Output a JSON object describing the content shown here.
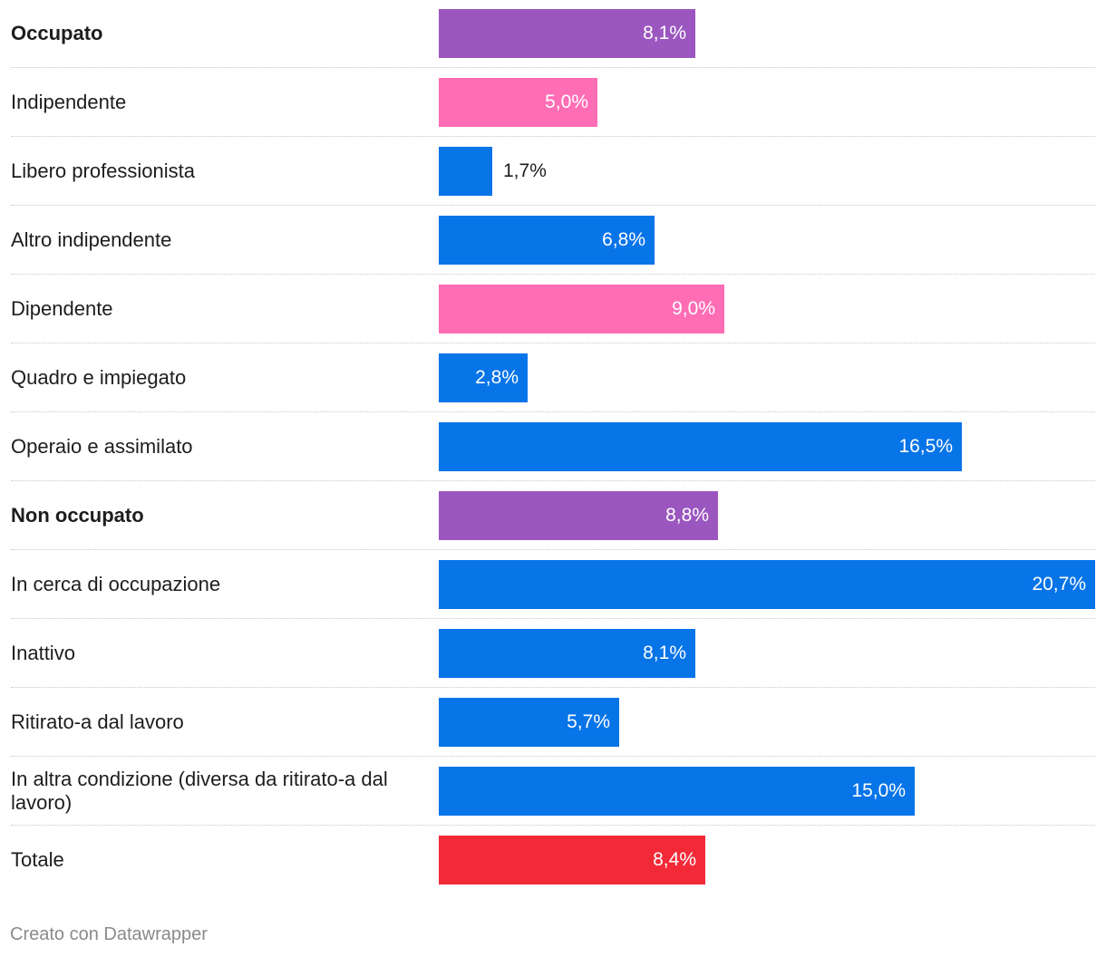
{
  "chart_data": {
    "type": "bar",
    "orientation": "horizontal",
    "unit": "%",
    "xlim": [
      0,
      20.7
    ],
    "rows": [
      {
        "label": "Occupato",
        "value": 8.1,
        "display": "8,1%",
        "bold": true,
        "color": "#9b57bf"
      },
      {
        "label": "Indipendente",
        "value": 5.0,
        "display": "5,0%",
        "bold": false,
        "color": "#ff6db5"
      },
      {
        "label": "Libero professionista",
        "value": 1.7,
        "display": "1,7%",
        "bold": false,
        "color": "#0774e8"
      },
      {
        "label": "Altro indipendente",
        "value": 6.8,
        "display": "6,8%",
        "bold": false,
        "color": "#0774e8"
      },
      {
        "label": "Dipendente",
        "value": 9.0,
        "display": "9,0%",
        "bold": false,
        "color": "#ff6db5"
      },
      {
        "label": "Quadro e impiegato",
        "value": 2.8,
        "display": "2,8%",
        "bold": false,
        "color": "#0774e8"
      },
      {
        "label": "Operaio e assimilato",
        "value": 16.5,
        "display": "16,5%",
        "bold": false,
        "color": "#0774e8"
      },
      {
        "label": "Non occupato",
        "value": 8.8,
        "display": "8,8%",
        "bold": true,
        "color": "#9b57bf"
      },
      {
        "label": "In cerca di occupazione",
        "value": 20.7,
        "display": "20,7%",
        "bold": false,
        "color": "#0774e8"
      },
      {
        "label": "Inattivo",
        "value": 8.1,
        "display": "8,1%",
        "bold": false,
        "color": "#0774e8"
      },
      {
        "label": "Ritirato-a dal lavoro",
        "value": 5.7,
        "display": "5,7%",
        "bold": false,
        "color": "#0774e8"
      },
      {
        "label": "In altra condizione (diversa da ritirato-a dal lavoro)",
        "value": 15.0,
        "display": "15,0%",
        "bold": false,
        "color": "#0774e8"
      },
      {
        "label": "Totale",
        "value": 8.4,
        "display": "8,4%",
        "bold": false,
        "color": "#f22a38"
      }
    ]
  },
  "footer": {
    "credit": "Creato con Datawrapper"
  }
}
